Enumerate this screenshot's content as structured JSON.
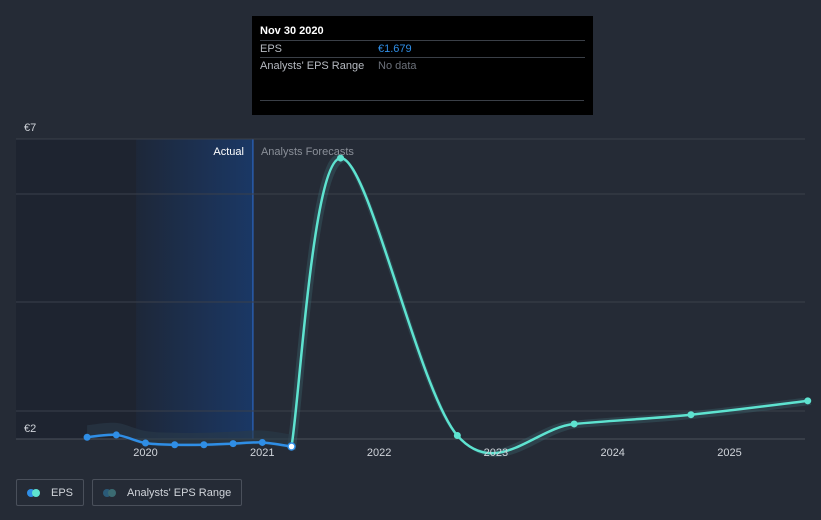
{
  "colors": {
    "background": "#252b36",
    "eps_actual": "#2f8ee6",
    "eps_forecast": "#5ee3d0",
    "range_band": "#3b6b72",
    "past_shade": "#1e2430",
    "actual_highlight": "#1a3a6b",
    "grid": "#3a404b"
  },
  "tooltip": {
    "date": "Nov 30 2020",
    "rows": [
      {
        "label": "EPS",
        "value": "€1.679"
      },
      {
        "label": "Analysts' EPS Range",
        "value": "No data"
      }
    ]
  },
  "legend": {
    "items": [
      {
        "label": "EPS"
      },
      {
        "label": "Analysts' EPS Range"
      }
    ]
  },
  "chart_data": {
    "type": "line",
    "ylabel_top": "€7",
    "ylabel_bottom": "€2",
    "ylim": [
      1.65,
      7
    ],
    "xlim": [
      2019.25,
      2025.67
    ],
    "x_ticks": [
      "2020",
      "2021",
      "2022",
      "2023",
      "2024",
      "2025"
    ],
    "region_labels": {
      "actual": "Actual",
      "forecast": "Analysts Forecasts"
    },
    "divider_x": 2020.92,
    "series": [
      {
        "name": "EPS",
        "role": "actual",
        "points": [
          [
            2019.5,
            1.84
          ],
          [
            2019.75,
            1.88
          ],
          [
            2020.0,
            1.74
          ],
          [
            2020.25,
            1.71
          ],
          [
            2020.5,
            1.71
          ],
          [
            2020.75,
            1.73
          ],
          [
            2021.0,
            1.75
          ],
          [
            2021.25,
            1.68
          ]
        ]
      },
      {
        "name": "EPS",
        "role": "forecast",
        "points": [
          [
            2021.25,
            1.68
          ],
          [
            2021.67,
            6.67
          ],
          [
            2022.67,
            1.87
          ],
          [
            2023.67,
            2.07
          ],
          [
            2024.67,
            2.23
          ],
          [
            2025.67,
            2.47
          ]
        ]
      }
    ]
  }
}
